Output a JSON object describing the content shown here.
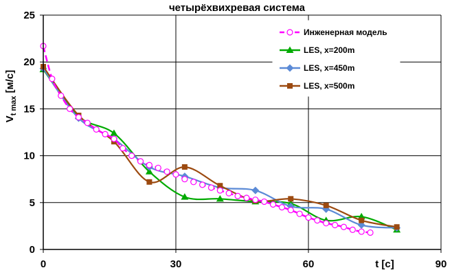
{
  "chart_data": {
    "type": "line",
    "title": "четырёхвихревая система",
    "xlabel": "t [c]",
    "ylabel_main": "V",
    "ylabel_sub": "t max",
    "ylabel_unit": " [м/с]",
    "xlim": [
      0,
      90
    ],
    "ylim": [
      0,
      25
    ],
    "xticks": [
      0,
      30,
      60,
      90
    ],
    "yticks": [
      0,
      5,
      10,
      15,
      20,
      25
    ],
    "grid": true,
    "legend_position": "top-right",
    "series": [
      {
        "name": "Инженерная модель",
        "color": "#ff00ff",
        "dash": "dashed",
        "marker": "open-circle",
        "x": [
          0,
          2,
          4,
          6,
          8,
          10,
          12,
          14,
          16,
          18,
          20,
          22,
          24,
          26,
          28,
          30,
          32,
          34,
          36,
          38,
          40,
          42,
          44,
          46,
          48,
          50,
          52,
          54,
          56,
          58,
          60,
          62,
          64,
          66,
          68,
          70,
          72,
          74
        ],
        "y": [
          21.7,
          18.2,
          16.4,
          15.0,
          14.1,
          13.5,
          12.8,
          12.3,
          11.8,
          10.8,
          10.0,
          9.4,
          9.0,
          8.7,
          8.3,
          8.0,
          7.5,
          7.2,
          6.9,
          6.6,
          6.3,
          6.0,
          5.7,
          5.5,
          5.3,
          5.1,
          4.8,
          4.5,
          4.2,
          3.8,
          3.4,
          3.1,
          2.8,
          2.6,
          2.4,
          2.1,
          1.9,
          1.8
        ]
      },
      {
        "name": "LES, x=200m",
        "color": "#00aa00",
        "dash": "solid",
        "marker": "triangle",
        "x": [
          0,
          8,
          16,
          24,
          32,
          40,
          48,
          56,
          64,
          72,
          80
        ],
        "y": [
          19.2,
          14.2,
          12.4,
          8.3,
          5.6,
          5.4,
          5.1,
          4.9,
          3.1,
          3.5,
          2.1
        ]
      },
      {
        "name": "LES, x=450m",
        "color": "#5b8ad6",
        "dash": "solid",
        "marker": "diamond",
        "x": [
          0,
          8,
          16,
          24,
          32,
          40,
          48,
          56,
          64,
          72,
          80
        ],
        "y": [
          19.3,
          14.0,
          11.8,
          8.8,
          7.8,
          6.6,
          6.3,
          4.6,
          4.3,
          2.6,
          2.3
        ]
      },
      {
        "name": "LES, x=500m",
        "color": "#9c4a10",
        "dash": "solid",
        "marker": "square",
        "x": [
          0,
          8,
          16,
          24,
          32,
          40,
          48,
          56,
          64,
          72,
          80
        ],
        "y": [
          19.5,
          14.3,
          11.5,
          7.2,
          8.8,
          6.8,
          5.2,
          5.4,
          4.7,
          3.1,
          2.4
        ]
      }
    ]
  }
}
